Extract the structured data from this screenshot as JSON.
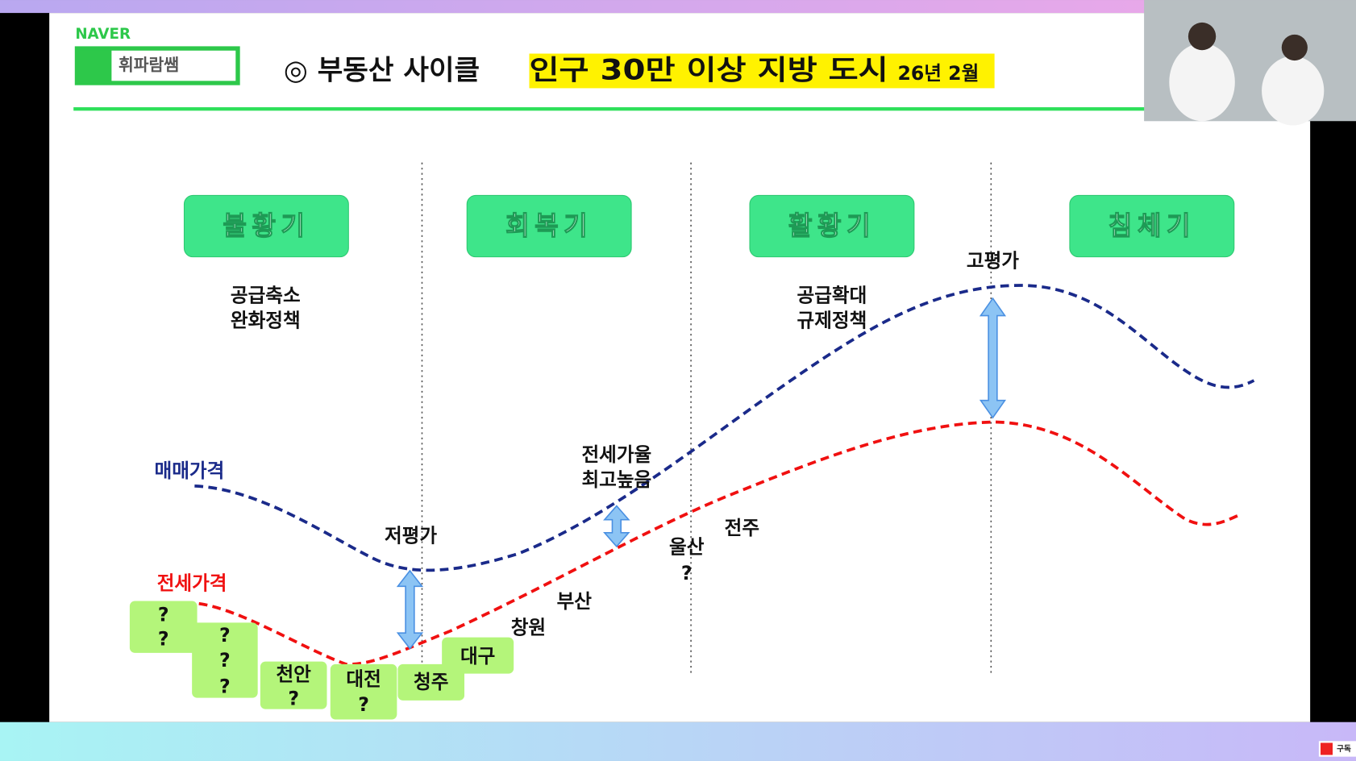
{
  "header": {
    "brand": "NAVER",
    "blog": "휘파람쌤",
    "title": "◎ 부동산 사이클",
    "highlight": "인구 30만 이상 지방 도시",
    "date": "26년 2월"
  },
  "phases": [
    "불황기",
    "회복기",
    "활황기",
    "침체기"
  ],
  "notes": [
    [
      "공급축소",
      "완화정책"
    ],
    [
      "공급확대",
      "규제정책"
    ]
  ],
  "curves": {
    "sale": "매매가격",
    "jeonse": "전세가격"
  },
  "annotations": {
    "undervalued": "저평가",
    "overvalued": "고평가",
    "ratio": [
      "전세가율",
      "최고높음"
    ]
  },
  "city_boxes": [
    [
      "?",
      "?"
    ],
    [
      "?",
      "?",
      "?"
    ],
    [
      "천안",
      "?"
    ],
    [
      "대전",
      "?"
    ],
    [
      "청주"
    ],
    [
      "대구"
    ]
  ],
  "city_labels": [
    "창원",
    "부산",
    "울산",
    "?",
    "전주"
  ],
  "subscribe": "구독"
}
